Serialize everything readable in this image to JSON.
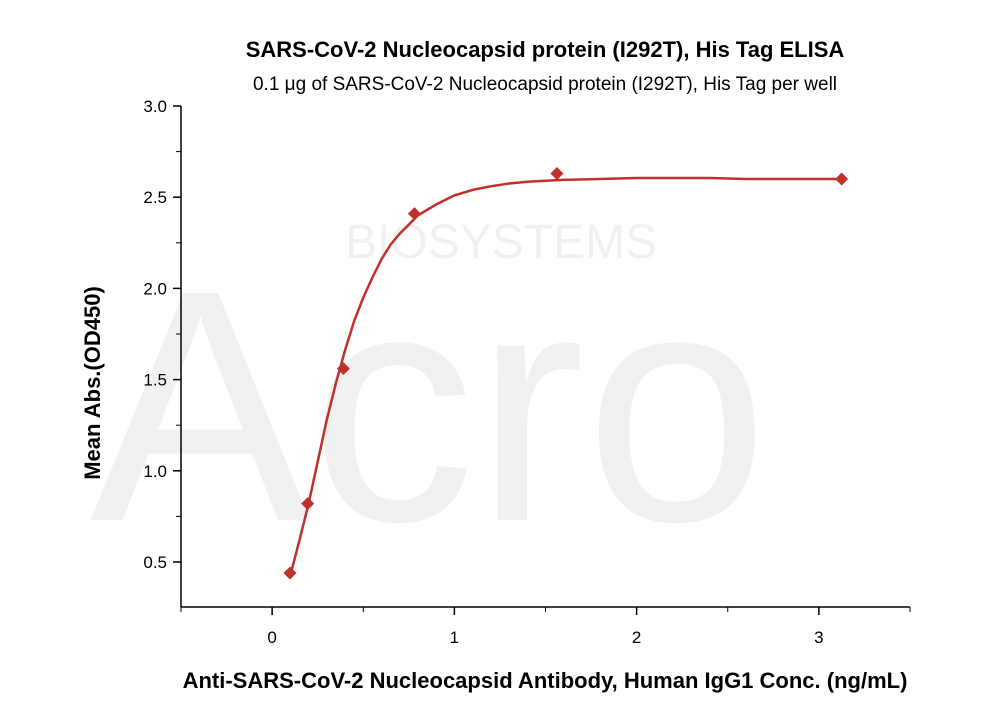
{
  "chart_data": {
    "type": "scatter",
    "title": "SARS-CoV-2 Nucleocapsid protein (I292T), His Tag ELISA",
    "subtitle": "0.1 μg of SARS-CoV-2 Nucleocapsid protein (I292T), His Tag per well",
    "xlabel": "Anti-SARS-CoV-2 Nucleocapsid Antibody, Human IgG1 Conc. (ng/mL)",
    "ylabel": "Mean Abs.(OD450)",
    "xlim": [
      -0.5,
      3.5
    ],
    "ylim": [
      0.3,
      3.0
    ],
    "x_ticks": [
      0,
      1,
      2,
      3
    ],
    "x_tick_labels": [
      "0",
      "1",
      "2",
      "3"
    ],
    "y_ticks": [
      0.5,
      1.0,
      1.5,
      2.0,
      2.5,
      3.0
    ],
    "y_tick_labels": [
      "0.5",
      "1.0",
      "1.5",
      "2.0",
      "2.5",
      "3.0"
    ],
    "grid": false,
    "watermark_text": [
      "Acro",
      "BIOSYSTEMS"
    ],
    "series": [
      {
        "marker": "diamond",
        "color": "#c0302c",
        "x": [
          0.098,
          0.195,
          0.391,
          0.781,
          1.563,
          3.125
        ],
        "y": [
          0.44,
          0.82,
          1.56,
          2.41,
          2.63,
          2.6
        ]
      }
    ],
    "fit_curve": {
      "color": "#c0302c",
      "x": [
        0.098,
        0.15,
        0.2,
        0.25,
        0.3,
        0.35,
        0.4,
        0.45,
        0.5,
        0.55,
        0.6,
        0.65,
        0.7,
        0.75,
        0.8,
        0.9,
        1.0,
        1.1,
        1.2,
        1.3,
        1.4,
        1.5,
        1.6,
        1.8,
        2.0,
        2.2,
        2.4,
        2.6,
        2.8,
        3.0,
        3.125
      ],
      "y": [
        0.42,
        0.62,
        0.82,
        1.05,
        1.28,
        1.48,
        1.66,
        1.82,
        1.95,
        2.06,
        2.16,
        2.24,
        2.3,
        2.35,
        2.4,
        2.46,
        2.51,
        2.54,
        2.56,
        2.575,
        2.585,
        2.59,
        2.595,
        2.6,
        2.605,
        2.605,
        2.605,
        2.6,
        2.6,
        2.6,
        2.6
      ]
    }
  }
}
